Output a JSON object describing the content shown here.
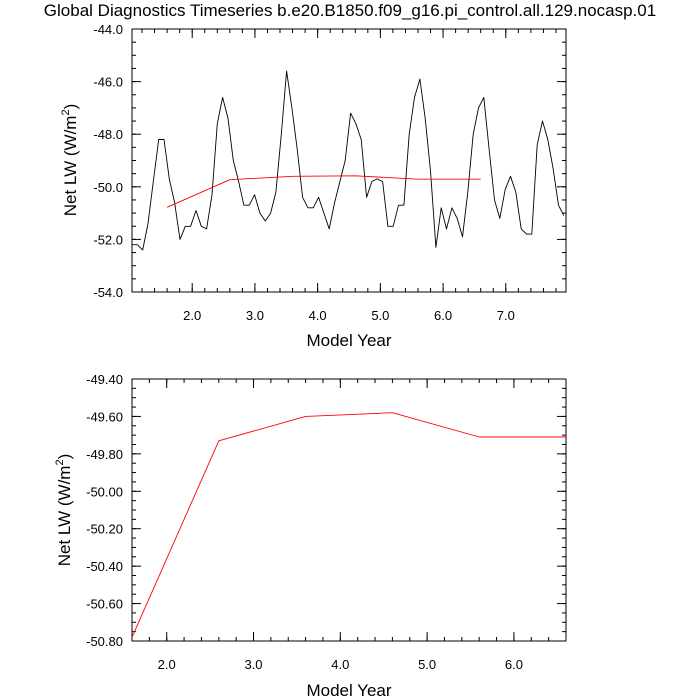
{
  "page": {
    "title": "Global Diagnostics Timeseries b.e20.B1850.f09_g16.pi_control.all.129.nocasp.01"
  },
  "chart_data": [
    {
      "type": "line",
      "xlabel": "Model Year",
      "ylabel_base": "Net LW (W/m",
      "ylabel_sup": "2",
      "ylabel_tail": ")",
      "xlim": [
        1.04,
        7.96
      ],
      "ylim": [
        -54.0,
        -44.0
      ],
      "x_ticks": [
        2.0,
        3.0,
        4.0,
        5.0,
        6.0,
        7.0
      ],
      "x_tick_labels": [
        "2.0",
        "3.0",
        "4.0",
        "5.0",
        "6.0",
        "7.0"
      ],
      "y_ticks": [
        -54.0,
        -52.0,
        -50.0,
        -48.0,
        -46.0,
        -44.0
      ],
      "y_tick_labels": [
        "-54.0",
        "-52.0",
        "-50.0",
        "-48.0",
        "-46.0",
        "-44.0"
      ],
      "series": [
        {
          "color": "#000000",
          "x": [
            1.04,
            1.125,
            1.21,
            1.295,
            1.38,
            1.465,
            1.55,
            1.635,
            1.72,
            1.805,
            1.89,
            1.975,
            2.06,
            2.145,
            2.23,
            2.315,
            2.4,
            2.485,
            2.57,
            2.655,
            2.74,
            2.825,
            2.91,
            2.995,
            3.08,
            3.165,
            3.25,
            3.335,
            3.42,
            3.505,
            3.59,
            3.675,
            3.76,
            3.845,
            3.93,
            4.015,
            4.1,
            4.185,
            4.27,
            4.355,
            4.44,
            4.525,
            4.61,
            4.695,
            4.78,
            4.865,
            4.95,
            5.035,
            5.12,
            5.205,
            5.29,
            5.375,
            5.46,
            5.545,
            5.63,
            5.715,
            5.8,
            5.885,
            5.97,
            6.055,
            6.14,
            6.225,
            6.31,
            6.395,
            6.48,
            6.565,
            6.65,
            6.735,
            6.82,
            6.905,
            6.99,
            7.075,
            7.16,
            7.245,
            7.33,
            7.415,
            7.5,
            7.585,
            7.67,
            7.755,
            7.84,
            7.925
          ],
          "values": [
            -52.2,
            -52.2,
            -52.4,
            -51.4,
            -49.8,
            -48.2,
            -48.2,
            -49.7,
            -50.6,
            -52.0,
            -51.5,
            -51.5,
            -50.9,
            -51.5,
            -51.6,
            -50.3,
            -47.6,
            -46.6,
            -47.4,
            -49.0,
            -49.8,
            -50.7,
            -50.7,
            -50.3,
            -51.0,
            -51.3,
            -51.0,
            -50.2,
            -48.0,
            -45.6,
            -47.0,
            -48.6,
            -50.4,
            -50.8,
            -50.8,
            -50.4,
            -51.0,
            -51.6,
            -50.6,
            -49.8,
            -49.0,
            -47.2,
            -47.6,
            -48.2,
            -50.4,
            -49.8,
            -49.7,
            -49.8,
            -51.5,
            -51.5,
            -50.7,
            -50.7,
            -48.0,
            -46.6,
            -45.9,
            -47.4,
            -49.4,
            -52.3,
            -50.8,
            -51.6,
            -50.8,
            -51.2,
            -51.9,
            -50.2,
            -48.0,
            -47.0,
            -46.6,
            -48.6,
            -50.5,
            -51.2,
            -50.1,
            -49.6,
            -50.2,
            -51.6,
            -51.8,
            -51.8,
            -48.4,
            -47.5,
            -48.2,
            -49.3,
            -50.7,
            -51.1
          ]
        },
        {
          "color": "#ff0000",
          "x": [
            1.6,
            2.6,
            3.6,
            4.6,
            5.6,
            6.6
          ],
          "values": [
            -50.78,
            -49.73,
            -49.6,
            -49.58,
            -49.71,
            -49.71
          ]
        }
      ]
    },
    {
      "type": "line",
      "xlabel": "Model Year",
      "ylabel_base": "Net LW (W/m",
      "ylabel_sup": "2",
      "ylabel_tail": ")",
      "xlim": [
        1.6,
        6.6
      ],
      "ylim": [
        -50.8,
        -49.4
      ],
      "x_ticks": [
        2.0,
        3.0,
        4.0,
        5.0,
        6.0
      ],
      "x_tick_labels": [
        "2.0",
        "3.0",
        "4.0",
        "5.0",
        "6.0"
      ],
      "y_ticks": [
        -50.8,
        -50.6,
        -50.4,
        -50.2,
        -50.0,
        -49.8,
        -49.6,
        -49.4
      ],
      "y_tick_labels": [
        "-50.80",
        "-50.60",
        "-50.40",
        "-50.20",
        "-50.00",
        "-49.80",
        "-49.60",
        "-49.40"
      ],
      "series": [
        {
          "color": "#ff0000",
          "x": [
            1.6,
            2.6,
            3.6,
            4.6,
            5.6,
            6.6
          ],
          "values": [
            -50.78,
            -49.73,
            -49.6,
            -49.58,
            -49.71,
            -49.71
          ]
        }
      ]
    }
  ]
}
